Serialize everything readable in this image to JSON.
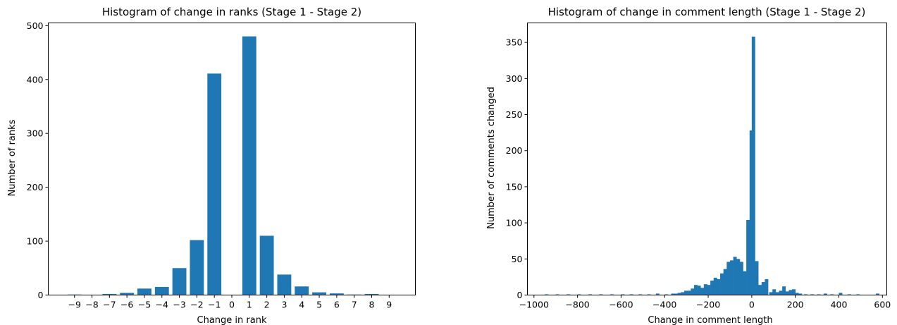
{
  "chart_data": [
    {
      "type": "bar",
      "title": "Histogram of change in ranks (Stage 1 - Stage 2)",
      "xlabel": "Change in rank",
      "ylabel": "Number of ranks",
      "x": [
        -9,
        -8,
        -7,
        -6,
        -5,
        -4,
        -3,
        -2,
        -1,
        0,
        1,
        2,
        3,
        4,
        5,
        6,
        7,
        8,
        9
      ],
      "values": [
        1,
        0,
        2,
        4,
        12,
        15,
        50,
        102,
        411,
        0,
        480,
        110,
        38,
        16,
        5,
        3,
        1,
        2,
        0
      ],
      "ylim": [
        0,
        505
      ],
      "xticks": [
        "−9",
        "−8",
        "−7",
        "−6",
        "−5",
        "−4",
        "−3",
        "−2",
        "−1",
        "0",
        "1",
        "2",
        "3",
        "4",
        "5",
        "6",
        "7",
        "8",
        "9"
      ],
      "yticks": [
        0,
        100,
        200,
        300,
        400,
        500
      ],
      "color": "#1f77b4",
      "grid": false
    },
    {
      "type": "bar",
      "title": "Histogram of change in comment length (Stage 1 - Stage 2)",
      "xlabel": "Change in comment length",
      "ylabel": "Number of comments changed",
      "bin_width": 16,
      "bins": [
        [
          -950,
          1
        ],
        [
          -900,
          1
        ],
        [
          -850,
          1
        ],
        [
          -800,
          1
        ],
        [
          -750,
          1
        ],
        [
          -700,
          1
        ],
        [
          -650,
          1
        ],
        [
          -600,
          1
        ],
        [
          -560,
          1
        ],
        [
          -520,
          1
        ],
        [
          -480,
          1
        ],
        [
          -440,
          2
        ],
        [
          -400,
          1
        ],
        [
          -370,
          2
        ],
        [
          -355,
          2
        ],
        [
          -340,
          3
        ],
        [
          -325,
          4
        ],
        [
          -310,
          6
        ],
        [
          -295,
          6
        ],
        [
          -280,
          9
        ],
        [
          -265,
          14
        ],
        [
          -250,
          13
        ],
        [
          -235,
          10
        ],
        [
          -220,
          15
        ],
        [
          -205,
          14
        ],
        [
          -190,
          20
        ],
        [
          -175,
          24
        ],
        [
          -160,
          22
        ],
        [
          -145,
          30
        ],
        [
          -130,
          36
        ],
        [
          -115,
          46
        ],
        [
          -100,
          48
        ],
        [
          -85,
          53
        ],
        [
          -70,
          50
        ],
        [
          -55,
          46
        ],
        [
          -40,
          33
        ],
        [
          -25,
          104
        ],
        [
          -10,
          228
        ],
        [
          0,
          358
        ],
        [
          15,
          47
        ],
        [
          30,
          14
        ],
        [
          45,
          18
        ],
        [
          60,
          22
        ],
        [
          80,
          4
        ],
        [
          95,
          8
        ],
        [
          110,
          4
        ],
        [
          125,
          6
        ],
        [
          140,
          12
        ],
        [
          155,
          5
        ],
        [
          170,
          7
        ],
        [
          185,
          8
        ],
        [
          200,
          3
        ],
        [
          215,
          2
        ],
        [
          240,
          1
        ],
        [
          270,
          1
        ],
        [
          300,
          1
        ],
        [
          330,
          2
        ],
        [
          360,
          1
        ],
        [
          400,
          3
        ],
        [
          440,
          1
        ],
        [
          480,
          1
        ],
        [
          570,
          2
        ]
      ],
      "xlim": [
        -1030,
        620
      ],
      "ylim": [
        0,
        377
      ],
      "xticks": [
        -1000,
        -800,
        -600,
        -400,
        -200,
        0,
        200,
        400,
        600
      ],
      "xtick_labels": [
        "−1000",
        "−800",
        "−600",
        "−400",
        "−200",
        "0",
        "200",
        "400",
        "600"
      ],
      "yticks": [
        0,
        50,
        100,
        150,
        200,
        250,
        300,
        350
      ],
      "color": "#1f77b4",
      "grid": false
    }
  ]
}
